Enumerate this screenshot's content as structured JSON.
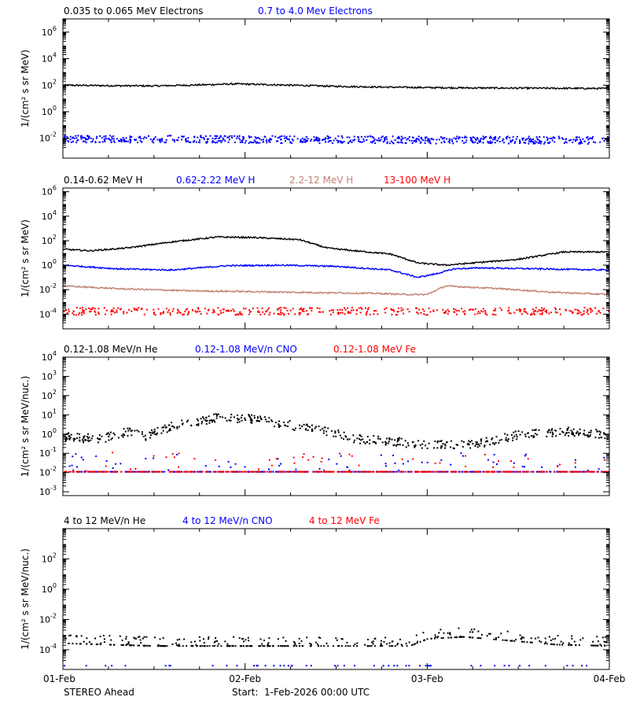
{
  "chart_data": [
    {
      "type": "scatter",
      "panel": 1,
      "ylabel": "1/(cm² s sr MeV)",
      "yscale": "log",
      "ylim_exp": [
        -3.5,
        7
      ],
      "tick_exps": [
        -2,
        0,
        2,
        4,
        6
      ],
      "series": [
        {
          "name": "0.035 to 0.065 MeV Electrons",
          "color": "#000000",
          "x": [
            0,
            0.25,
            0.5,
            0.75,
            0.95,
            1.25,
            1.5,
            1.75,
            2.0,
            2.25,
            2.5,
            2.75,
            3.0
          ],
          "y": [
            100,
            92,
            88,
            105,
            125,
            100,
            82,
            72,
            66,
            62,
            60,
            58,
            56
          ],
          "style": "line"
        },
        {
          "name": "0.7 to 4.0 Mev Electrons",
          "color": "#0000ff",
          "x": [
            0,
            3.0
          ],
          "y": [
            0.01,
            0.008
          ],
          "style": "scatter"
        }
      ]
    },
    {
      "type": "scatter",
      "panel": 2,
      "ylabel": "1/(cm² s sr MeV)",
      "yscale": "log",
      "ylim_exp": [
        -5.2,
        6.3
      ],
      "tick_exps": [
        -4,
        -2,
        0,
        2,
        4,
        6
      ],
      "series": [
        {
          "name": "0.14-0.62 MeV H",
          "color": "#000000",
          "x": [
            0,
            0.15,
            0.35,
            0.6,
            0.85,
            1.05,
            1.3,
            1.45,
            1.6,
            1.8,
            1.95,
            2.1,
            2.25,
            2.5,
            2.75,
            3.0
          ],
          "y": [
            20,
            15,
            25,
            80,
            200,
            180,
            120,
            25,
            15,
            8,
            1.5,
            1.0,
            1.5,
            3,
            12,
            12
          ],
          "style": "line"
        },
        {
          "name": "0.62-2.22 MeV H",
          "color": "#0000ff",
          "x": [
            0,
            0.3,
            0.6,
            0.9,
            1.2,
            1.5,
            1.8,
            1.95,
            2.05,
            2.15,
            2.3,
            2.6,
            3.0
          ],
          "y": [
            1.0,
            0.5,
            0.4,
            0.9,
            1.0,
            0.8,
            0.4,
            0.1,
            0.2,
            0.5,
            0.6,
            0.5,
            0.4
          ],
          "style": "line"
        },
        {
          "name": "2.2-12 MeV H",
          "color": "#c08070",
          "x": [
            0,
            0.3,
            0.7,
            1.0,
            1.3,
            1.7,
            1.9,
            2.0,
            2.1,
            2.4,
            2.7,
            3.0
          ],
          "y": [
            0.02,
            0.012,
            0.008,
            0.007,
            0.006,
            0.005,
            0.004,
            0.004,
            0.02,
            0.012,
            0.006,
            0.004
          ],
          "style": "line"
        },
        {
          "name": "13-100 MeV H",
          "color": "#ff0000",
          "x": [
            0,
            3.0
          ],
          "y": [
            0.00015,
            0.00015
          ],
          "style": "scatter"
        }
      ]
    },
    {
      "type": "scatter",
      "panel": 3,
      "ylabel": "1/(cm² s sr MeV/nuc.)",
      "yscale": "log",
      "ylim_exp": [
        -3.2,
        4
      ],
      "tick_exps": [
        -3,
        -2,
        -1,
        0,
        1,
        2,
        3,
        4
      ],
      "series": [
        {
          "name": "0.12-1.08 MeV/n He",
          "color": "#000000",
          "x": [
            0,
            0.2,
            0.35,
            0.45,
            0.6,
            0.85,
            1.0,
            1.2,
            1.3,
            1.45,
            1.6,
            1.75,
            2.0,
            2.25,
            2.5,
            2.75,
            3.0
          ],
          "y": [
            0.8,
            0.6,
            1.5,
            0.8,
            3,
            8,
            7,
            4,
            2.5,
            1.5,
            0.6,
            0.5,
            0.3,
            0.3,
            1,
            1.5,
            1
          ],
          "style": "scatter"
        },
        {
          "name": "0.12-1.08 MeV/n CNO",
          "color": "#0000ff",
          "x": [
            0,
            3.0
          ],
          "y": [
            0.012,
            0.012
          ],
          "style": "scatter"
        },
        {
          "name": "0.12-1.08 MeV Fe",
          "color": "#ff0000",
          "x": [
            0,
            3.0
          ],
          "y": [
            0.012,
            0.012
          ],
          "style": "scatter"
        }
      ]
    },
    {
      "type": "scatter",
      "panel": 4,
      "ylabel": "1/(cm² s sr MeV/nuc.)",
      "yscale": "log",
      "ylim_exp": [
        -5.3,
        4
      ],
      "tick_exps": [
        -4,
        -2,
        0,
        2
      ],
      "series": [
        {
          "name": "4 to 12 MeV/n He",
          "color": "#000000",
          "x": [
            0,
            0.5,
            1.0,
            1.5,
            1.9,
            2.0,
            2.2,
            2.5,
            2.7,
            3.0
          ],
          "y": [
            0.0003,
            0.0002,
            0.0002,
            0.0002,
            0.0002,
            0.0006,
            0.0008,
            0.0004,
            0.00025,
            0.0002
          ],
          "style": "scatter"
        },
        {
          "name": "4 to 12 MeV/n CNO",
          "color": "#0000ff",
          "x": [
            0,
            3.0
          ],
          "y": [
            1e-05,
            1e-05
          ],
          "style": "scatter"
        },
        {
          "name": "4 to 12 MeV Fe",
          "color": "#ff0000",
          "x": [],
          "y": [],
          "style": "scatter"
        }
      ]
    }
  ],
  "x_axis": {
    "ticks": [
      0,
      1,
      2,
      3
    ],
    "tick_labels": [
      "01-Feb",
      "02-Feb",
      "03-Feb",
      "04-Feb"
    ]
  },
  "footer": {
    "spacecraft": "STEREO Ahead",
    "start": "Start:  1-Feb-2026 00:00 UTC"
  }
}
